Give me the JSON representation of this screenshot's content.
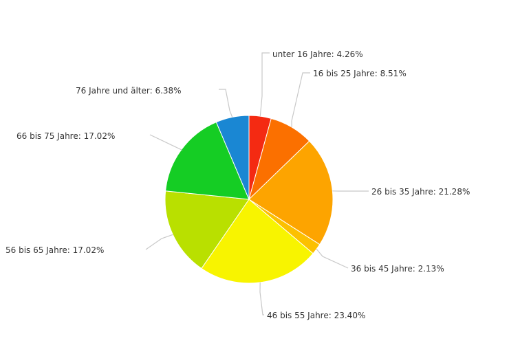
{
  "chart_data": {
    "type": "pie",
    "categories": [
      "unter 16 Jahre",
      "16 bis 25 Jahre",
      "26 bis 35 Jahre",
      "36 bis 45 Jahre",
      "46 bis 55 Jahre",
      "56 bis 65 Jahre",
      "66 bis 75 Jahre",
      "76 Jahre und älter"
    ],
    "values": [
      4.26,
      8.51,
      21.28,
      2.13,
      23.4,
      17.02,
      17.02,
      6.38
    ],
    "labels": [
      "unter 16 Jahre: 4.26%",
      "16 bis 25 Jahre: 8.51%",
      "26 bis 35 Jahre: 21.28%",
      "36 bis 45 Jahre: 2.13%",
      "46 bis 55 Jahre: 23.40%",
      "56 bis 65 Jahre: 17.02%",
      "66 bis 75 Jahre: 17.02%",
      "76 Jahre und älter: 6.38%"
    ],
    "colors": [
      "#f42a12",
      "#fb7000",
      "#fda400",
      "#fcc000",
      "#f8f400",
      "#b9e000",
      "#15cd24",
      "#1a87d3"
    ],
    "title": "",
    "legend": "none"
  }
}
